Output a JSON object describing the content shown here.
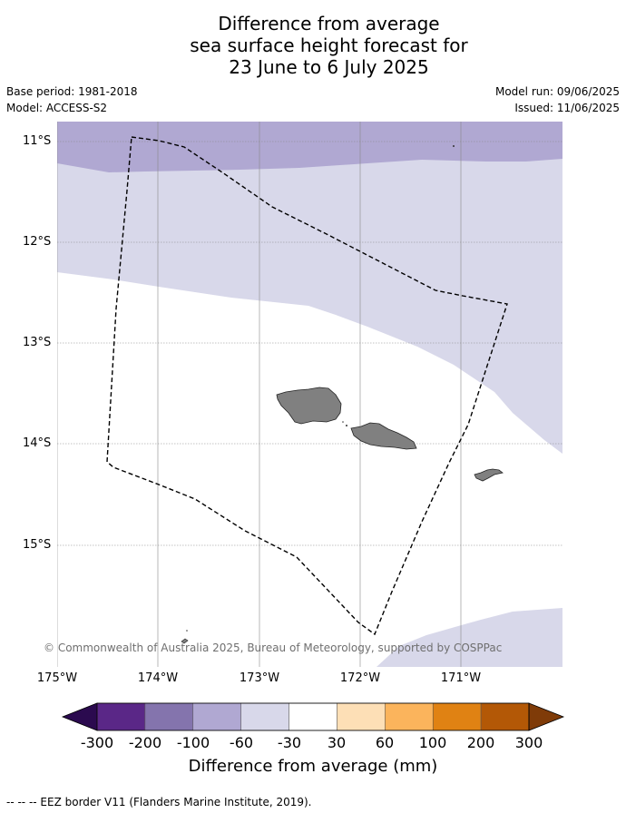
{
  "title": {
    "line1": "Difference from average",
    "line2": "sea surface height forecast for",
    "line3": "23 June to 6 July 2025"
  },
  "meta": {
    "base_period": "Base period: 1981-2018",
    "model": "Model: ACCESS-S2",
    "model_run": "Model run: 09/06/2025",
    "issued": "Issued: 11/06/2025"
  },
  "map": {
    "lat_labels": [
      "11°S",
      "12°S",
      "13°S",
      "14°S",
      "15°S"
    ],
    "lon_labels": [
      "175°W",
      "174°W",
      "173°W",
      "172°W",
      "171°W"
    ],
    "copyright": "© Commonwealth of Australia 2025, Bureau of Meteorology, supported by COSPPac",
    "colors": {
      "band_minus100_minus60": "#b0a8d2",
      "band_minus60_minus30": "#d8d8ea",
      "neutral": "#ffffff",
      "land": "#808080",
      "eez_border": "#000000"
    }
  },
  "colorbar": {
    "ticks": [
      "-300",
      "-200",
      "-100",
      "-60",
      "-30",
      "30",
      "60",
      "100",
      "200",
      "300"
    ],
    "colors": [
      "#2b0a4f",
      "#5a2787",
      "#8474ad",
      "#b0a8d2",
      "#d8d8ea",
      "#ffffff",
      "#fddfb6",
      "#fbb45c",
      "#e08213",
      "#b35806",
      "#7f3b08"
    ],
    "label": "Difference from average (mm)"
  },
  "footer": "--  --  -- EEZ border V11 (Flanders Marine Institute, 2019)."
}
